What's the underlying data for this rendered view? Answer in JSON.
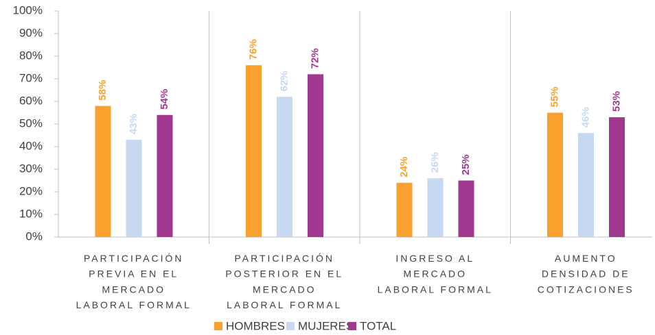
{
  "chart_data": {
    "type": "bar",
    "categories": [
      "PARTICIPACIÓN\nPREVIA EN EL\nMERCADO\nLABORAL FORMAL",
      "PARTICIPACIÓN\nPOSTERIOR EN EL\nMERCADO\nLABORAL FORMAL",
      "INGRESO AL\nMERCADO\nLABORAL FORMAL",
      "AUMENTO\nDENSIDAD DE\nCOTIZACIONES"
    ],
    "series": [
      {
        "name": "HOMBRES",
        "color": "#f9a12c",
        "values": [
          58,
          76,
          24,
          55
        ],
        "value_labels": [
          "58%",
          "76%",
          "24%",
          "55%"
        ]
      },
      {
        "name": "MUJERES",
        "color": "#c6d9f1",
        "values": [
          43,
          62,
          26,
          46
        ],
        "value_labels": [
          "43%",
          "62%",
          "26%",
          "46%"
        ]
      },
      {
        "name": "TOTAL",
        "color": "#a2378f",
        "values": [
          54,
          72,
          25,
          53
        ],
        "value_labels": [
          "54%",
          "72%",
          "25%",
          "53%"
        ]
      }
    ],
    "ylim": [
      0,
      100
    ],
    "yticks": [
      {
        "value": 0,
        "label": "0%"
      },
      {
        "value": 10,
        "label": "10%"
      },
      {
        "value": 20,
        "label": "20%"
      },
      {
        "value": 30,
        "label": "30%"
      },
      {
        "value": 40,
        "label": "40%"
      },
      {
        "value": 50,
        "label": "50%"
      },
      {
        "value": 60,
        "label": "60%"
      },
      {
        "value": 70,
        "label": "70%"
      },
      {
        "value": 80,
        "label": "80%"
      },
      {
        "value": 90,
        "label": "90%"
      },
      {
        "value": 100,
        "label": "100%"
      }
    ],
    "legend": "bottom"
  }
}
